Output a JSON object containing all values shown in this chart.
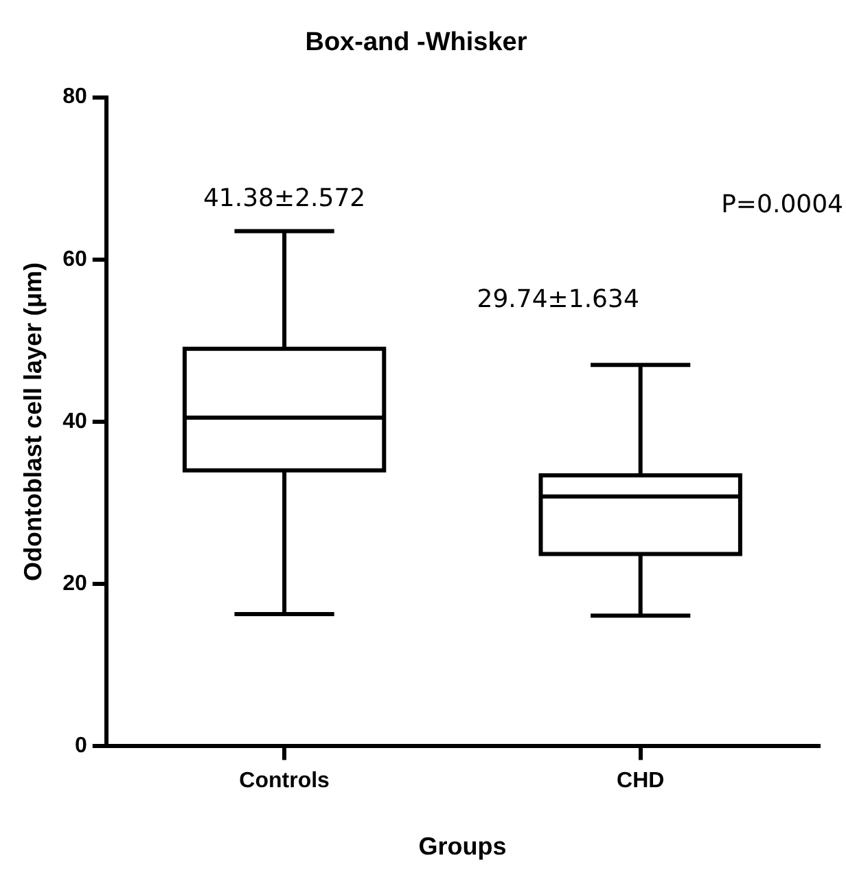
{
  "chart_data": {
    "type": "box",
    "title": "Box-and -Whisker",
    "xlabel": "Groups",
    "ylabel": "Odontoblast cell layer (μm)",
    "categories": [
      "Controls",
      "CHD"
    ],
    "boxes": [
      {
        "low": 16.3,
        "q1": 34,
        "median": 40.5,
        "q3": 49,
        "high": 63.5
      },
      {
        "low": 16.1,
        "q1": 23.7,
        "median": 30.8,
        "q3": 33.4,
        "high": 47
      }
    ],
    "color": "#000000",
    "ylim": [
      0,
      80
    ],
    "yticks": [
      0,
      20,
      40,
      60,
      80
    ],
    "grid": false,
    "legend": false,
    "annotations": [
      "41.38±2.572",
      "29.74±1.634",
      "P=0.0004"
    ]
  }
}
